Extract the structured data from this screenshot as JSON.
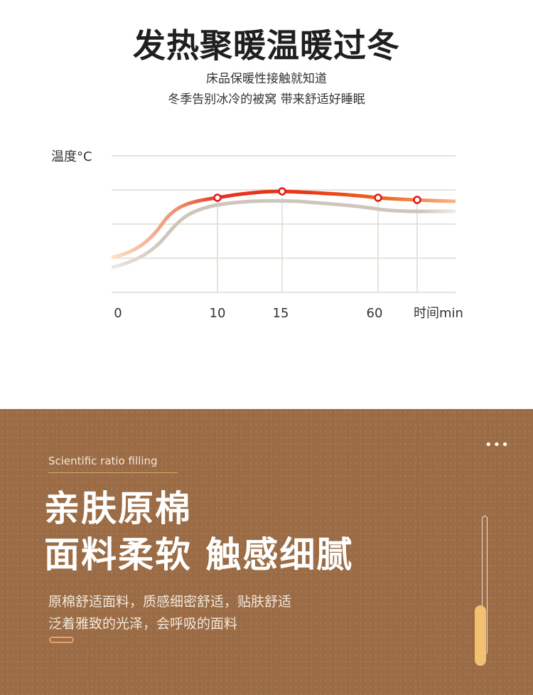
{
  "header": {
    "title": "发热聚暖温暖过冬",
    "subtitle_1": "床品保暖性接触就知道",
    "subtitle_2": "冬季告别冰冷的被窝 带来舒适好睡眠"
  },
  "chart_data": {
    "type": "line",
    "ylabel": "温度°C",
    "xlabel": "时间min",
    "x_ticks": [
      "0",
      "10",
      "15",
      "60"
    ],
    "grid": true,
    "series": [
      {
        "color": "#e8311a",
        "markers_at": [
          "10",
          "15",
          "60",
          ""
        ]
      },
      {
        "color": "#cfc5bb"
      }
    ]
  },
  "banner": {
    "english": "Scientific ratio filling",
    "headline_1": "亲肤原棉",
    "headline_2": "面料柔软 触感细腻",
    "body_1": "原棉舒适面料，质感细密舒适，贴肤舒适",
    "body_2": "泛着雅致的光泽，会呼吸的面料",
    "more_icon": "ellipsis-icon",
    "scroll_position": 0.85,
    "colors": {
      "background": "#9b6c45",
      "accent": "#f1c070"
    }
  }
}
